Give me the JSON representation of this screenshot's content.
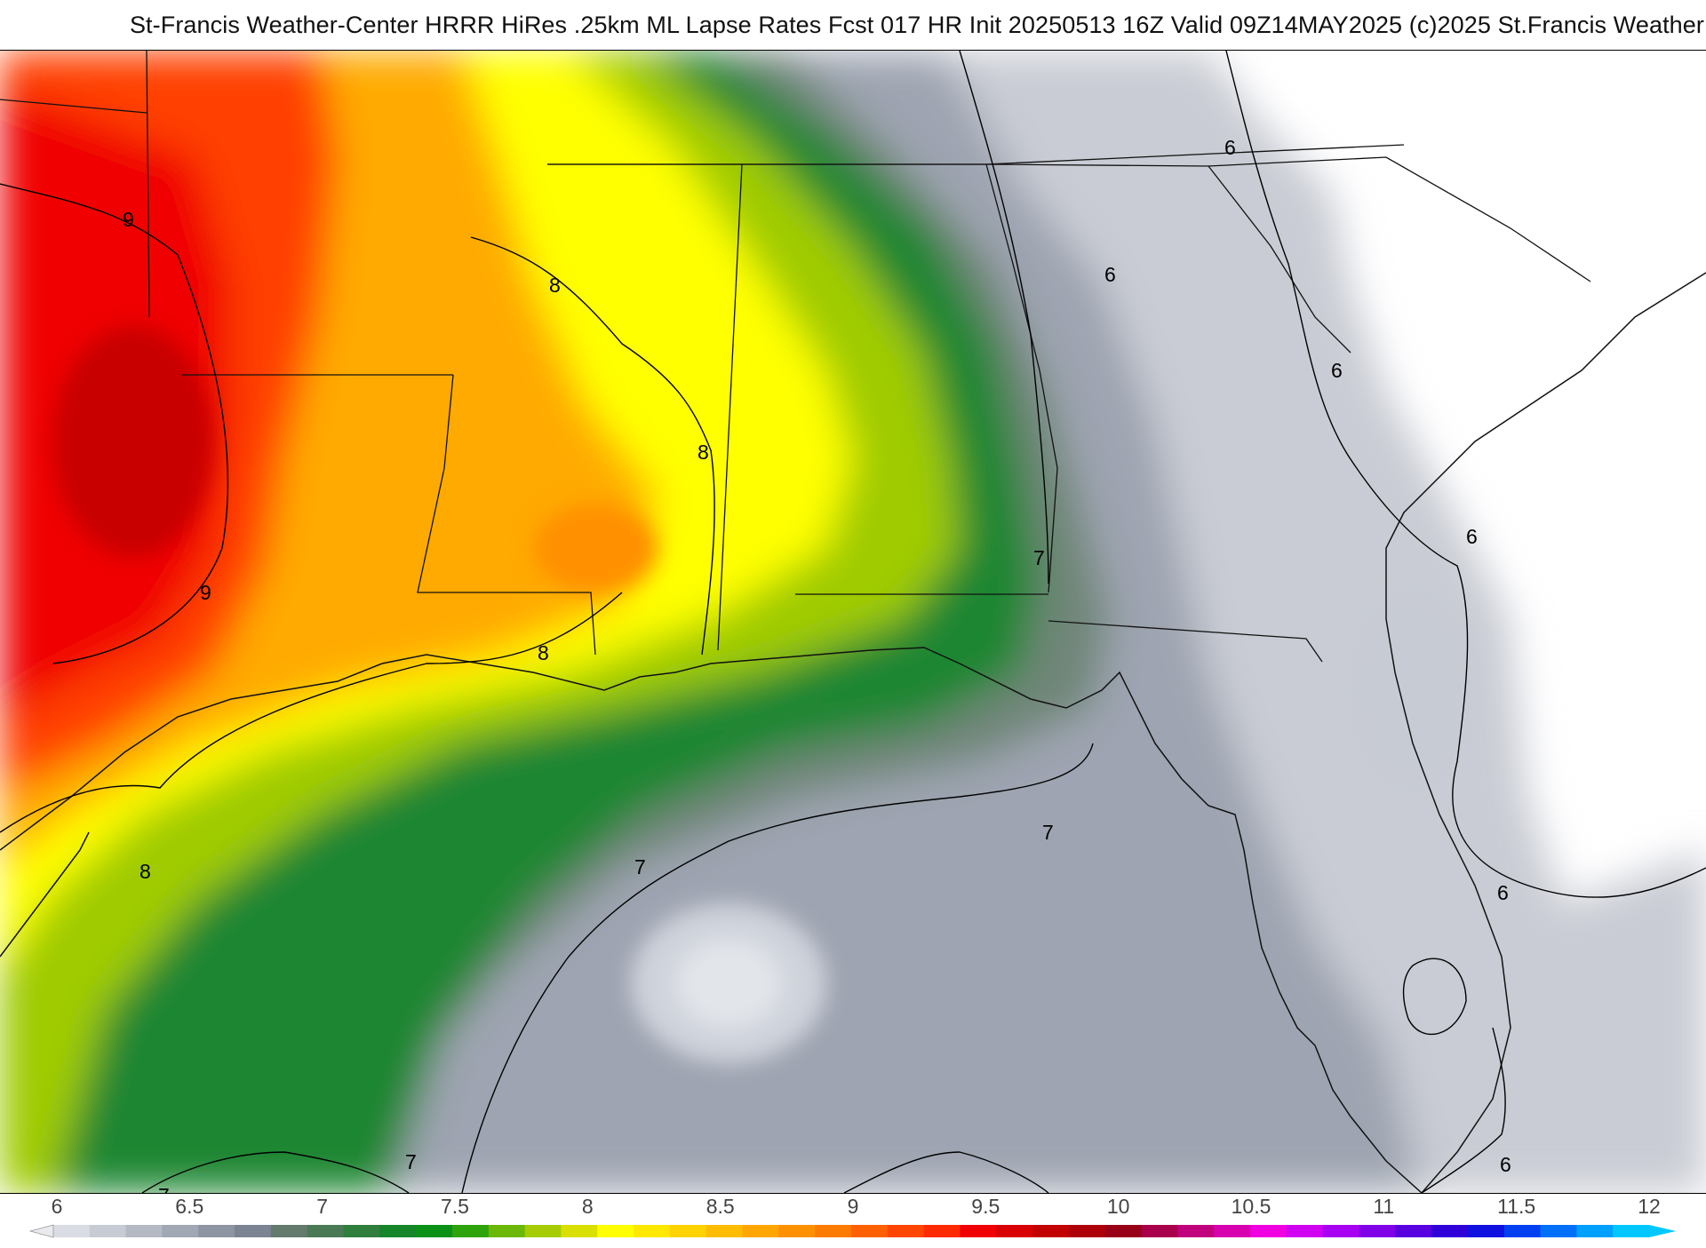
{
  "header": {
    "title": "St-Francis Weather-Center HRRR HiRes .25km ML Lapse Rates  Fcst 017 HR Init 20250513 16Z  Valid 09Z14MAY2025    (c)2025 St.Francis Weather"
  },
  "map": {
    "contour_labels": [
      {
        "id": "c9-a",
        "text": "9"
      },
      {
        "id": "c9-b",
        "text": "9"
      },
      {
        "id": "c8-a",
        "text": "8"
      },
      {
        "id": "c8-b",
        "text": "8"
      },
      {
        "id": "c8-c",
        "text": "8"
      },
      {
        "id": "c8-d",
        "text": "8"
      },
      {
        "id": "c7-a",
        "text": "7"
      },
      {
        "id": "c7-b",
        "text": "7"
      },
      {
        "id": "c7-c",
        "text": "7"
      },
      {
        "id": "c7-d",
        "text": "7"
      },
      {
        "id": "c7-e",
        "text": "7"
      },
      {
        "id": "c6-a",
        "text": "6"
      },
      {
        "id": "c6-b",
        "text": "6"
      },
      {
        "id": "c6-c",
        "text": "6"
      },
      {
        "id": "c6-d",
        "text": "6"
      },
      {
        "id": "c6-e",
        "text": "6"
      },
      {
        "id": "c6-f",
        "text": "6"
      },
      {
        "id": "c6-g",
        "text": "6"
      }
    ]
  },
  "colorbar": {
    "ticks": [
      "6",
      "6.5",
      "7",
      "7.5",
      "8",
      "8.5",
      "9",
      "9.5",
      "10",
      "10.5",
      "11",
      "11.5",
      "12"
    ],
    "colors": [
      "#d9dce3",
      "#c7cbd4",
      "#b4b9c4",
      "#a1a7b3",
      "#8e95a2",
      "#7c8392",
      "#637a6c",
      "#4a7a55",
      "#2f7e3c",
      "#15852a",
      "#0b9118",
      "#2fa30c",
      "#6bb808",
      "#a7cc04",
      "#d9e000",
      "#ffff00",
      "#ffe800",
      "#ffd200",
      "#ffbc00",
      "#ffa600",
      "#ff9000",
      "#ff7a00",
      "#ff6000",
      "#ff4600",
      "#ff2a00",
      "#f00000",
      "#d80000",
      "#c20000",
      "#ad0008",
      "#980018",
      "#a8004a",
      "#c0007c",
      "#d800ae",
      "#f000e0",
      "#d000f0",
      "#a800f0",
      "#8000e8",
      "#5800e0",
      "#3000d8",
      "#1010e0",
      "#0040f0",
      "#0070f8",
      "#00a0ff",
      "#00c8ff"
    ]
  }
}
